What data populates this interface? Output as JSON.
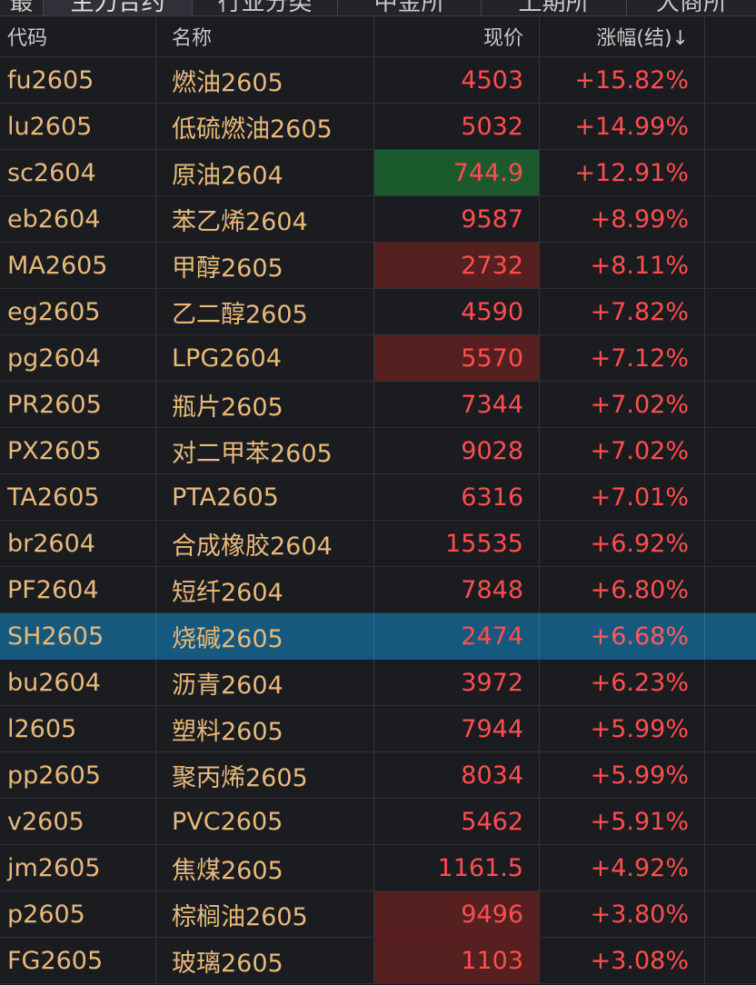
{
  "tabs": [
    {
      "label": "最"
    },
    {
      "label": "主力合约"
    },
    {
      "label": "行业分类"
    },
    {
      "label": "中金所"
    },
    {
      "label": "上期所"
    },
    {
      "label": "大商所"
    }
  ],
  "columns": {
    "code": "代码",
    "name": "名称",
    "price": "现价",
    "change": "涨幅(结)↓"
  },
  "rows": [
    {
      "code": "fu2605",
      "name": "燃油2605",
      "price": "4503",
      "change": "+15.82%",
      "flash": "none"
    },
    {
      "code": "lu2605",
      "name": "低硫燃油2605",
      "price": "5032",
      "change": "+14.99%",
      "flash": "none"
    },
    {
      "code": "sc2604",
      "name": "原油2604",
      "price": "744.9",
      "change": "+12.91%",
      "flash": "green"
    },
    {
      "code": "eb2604",
      "name": "苯乙烯2604",
      "price": "9587",
      "change": "+8.99%",
      "flash": "none"
    },
    {
      "code": "MA2605",
      "name": "甲醇2605",
      "price": "2732",
      "change": "+8.11%",
      "flash": "red"
    },
    {
      "code": "eg2605",
      "name": "乙二醇2605",
      "price": "4590",
      "change": "+7.82%",
      "flash": "none"
    },
    {
      "code": "pg2604",
      "name": "LPG2604",
      "price": "5570",
      "change": "+7.12%",
      "flash": "red"
    },
    {
      "code": "PR2605",
      "name": "瓶片2605",
      "price": "7344",
      "change": "+7.02%",
      "flash": "none"
    },
    {
      "code": "PX2605",
      "name": "对二甲苯2605",
      "price": "9028",
      "change": "+7.02%",
      "flash": "none"
    },
    {
      "code": "TA2605",
      "name": "PTA2605",
      "price": "6316",
      "change": "+7.01%",
      "flash": "none"
    },
    {
      "code": "br2604",
      "name": "合成橡胶2604",
      "price": "15535",
      "change": "+6.92%",
      "flash": "none"
    },
    {
      "code": "PF2604",
      "name": "短纤2604",
      "price": "7848",
      "change": "+6.80%",
      "flash": "none"
    },
    {
      "code": "SH2605",
      "name": "烧碱2605",
      "price": "2474",
      "change": "+6.68%",
      "flash": "none",
      "selected": true
    },
    {
      "code": "bu2604",
      "name": "沥青2604",
      "price": "3972",
      "change": "+6.23%",
      "flash": "none"
    },
    {
      "code": "l2605",
      "name": "塑料2605",
      "price": "7944",
      "change": "+5.99%",
      "flash": "none"
    },
    {
      "code": "pp2605",
      "name": "聚丙烯2605",
      "price": "8034",
      "change": "+5.99%",
      "flash": "none"
    },
    {
      "code": "v2605",
      "name": "PVC2605",
      "price": "5462",
      "change": "+5.91%",
      "flash": "none"
    },
    {
      "code": "jm2605",
      "name": "焦煤2605",
      "price": "1161.5",
      "change": "+4.92%",
      "flash": "none"
    },
    {
      "code": "p2605",
      "name": "棕榈油2605",
      "price": "9496",
      "change": "+3.80%",
      "flash": "red"
    },
    {
      "code": "FG2605",
      "name": "玻璃2605",
      "price": "1103",
      "change": "+3.08%",
      "flash": "red"
    }
  ]
}
